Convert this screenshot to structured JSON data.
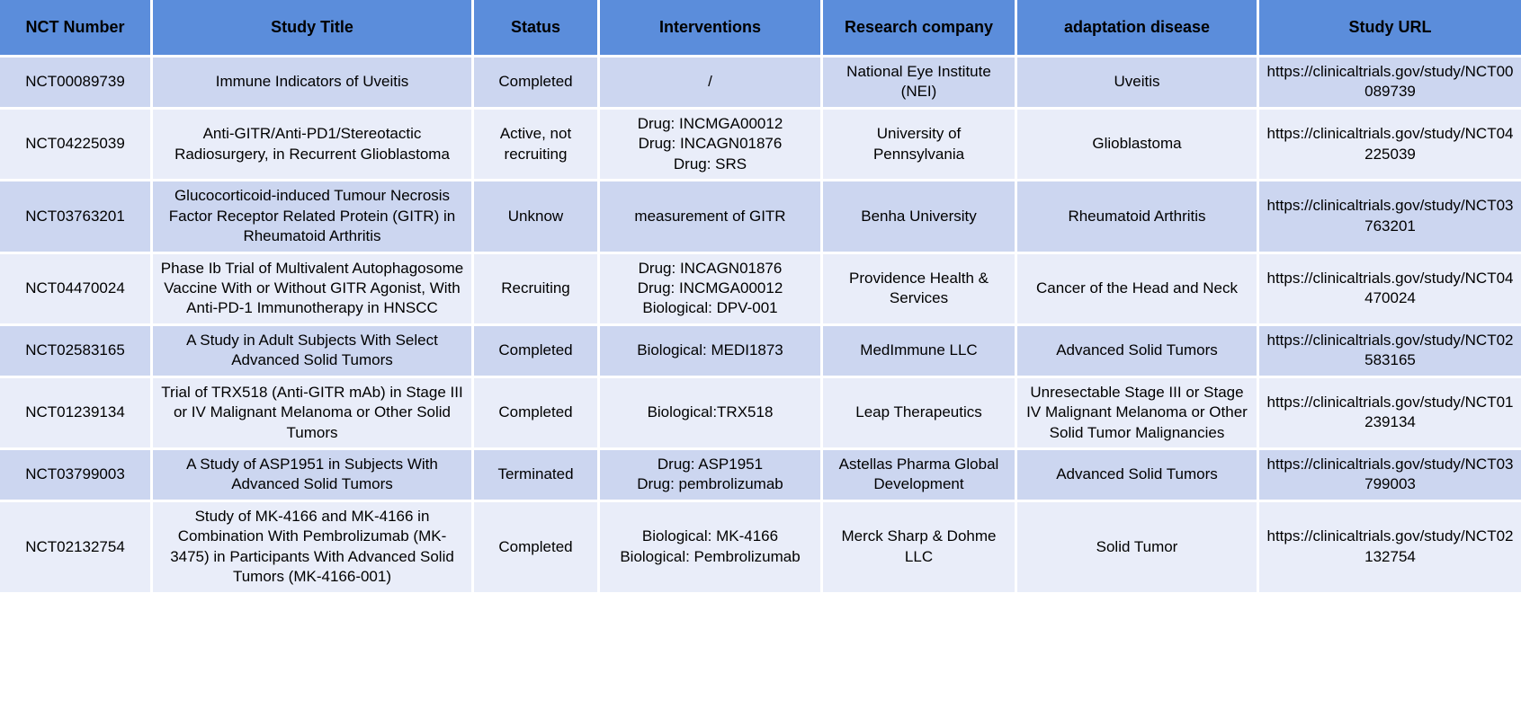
{
  "colors": {
    "header_bg": "#5b8ddb",
    "row_odd_bg": "#ccd6f0",
    "row_even_bg": "#e9edf9",
    "grid_color": "#ffffff",
    "text_color": "#000000"
  },
  "table": {
    "columns": [
      {
        "key": "nct_number",
        "label": "NCT Number"
      },
      {
        "key": "study_title",
        "label": "Study Title"
      },
      {
        "key": "status",
        "label": "Status"
      },
      {
        "key": "interventions",
        "label": "Interventions"
      },
      {
        "key": "research_company",
        "label": "Research company"
      },
      {
        "key": "adaptation_disease",
        "label": "adaptation disease"
      },
      {
        "key": "study_url",
        "label": "Study URL"
      }
    ],
    "rows": [
      {
        "nct_number": "NCT00089739",
        "study_title": "Immune Indicators of Uveitis",
        "status": "Completed",
        "interventions": "/",
        "research_company": "National Eye Institute (NEI)",
        "adaptation_disease": "Uveitis",
        "study_url": "https://clinicaltrials.gov/study/NCT00089739"
      },
      {
        "nct_number": "NCT04225039",
        "study_title": "Anti-GITR/Anti-PD1/Stereotactic Radiosurgery, in Recurrent Glioblastoma",
        "status": "Active, not recruiting",
        "interventions": "Drug: INCMGA00012\nDrug: INCAGN01876\nDrug: SRS",
        "research_company": "University of Pennsylvania",
        "adaptation_disease": "Glioblastoma",
        "study_url": "https://clinicaltrials.gov/study/NCT04225039"
      },
      {
        "nct_number": "NCT03763201",
        "study_title": "Glucocorticoid-induced Tumour Necrosis Factor Receptor Related Protein (GITR) in Rheumatoid Arthritis",
        "status": "Unknow",
        "interventions": "measurement of GITR",
        "research_company": "Benha University",
        "adaptation_disease": "Rheumatoid Arthritis",
        "study_url": "https://clinicaltrials.gov/study/NCT03763201"
      },
      {
        "nct_number": "NCT04470024",
        "study_title": "Phase Ib Trial of Multivalent Autophagosome Vaccine With or Without GITR Agonist, With Anti-PD-1 Immunotherapy in HNSCC",
        "status": "Recruiting",
        "interventions": "Drug: INCAGN01876\nDrug: INCMGA00012\nBiological: DPV-001",
        "research_company": "Providence Health & Services",
        "adaptation_disease": "Cancer of the Head and Neck",
        "study_url": "https://clinicaltrials.gov/study/NCT04470024"
      },
      {
        "nct_number": "NCT02583165",
        "study_title": "A Study in Adult Subjects With Select Advanced Solid Tumors",
        "status": "Completed",
        "interventions": "Biological: MEDI1873",
        "research_company": "MedImmune LLC",
        "adaptation_disease": "Advanced Solid Tumors",
        "study_url": "https://clinicaltrials.gov/study/NCT02583165"
      },
      {
        "nct_number": "NCT01239134",
        "study_title": "Trial of TRX518 (Anti-GITR mAb) in Stage III or IV Malignant Melanoma or Other Solid Tumors",
        "status": "Completed",
        "interventions": "Biological:TRX518",
        "research_company": "Leap Therapeutics",
        "adaptation_disease": "Unresectable Stage III or Stage IV Malignant Melanoma or Other Solid Tumor Malignancies",
        "study_url": "https://clinicaltrials.gov/study/NCT01239134"
      },
      {
        "nct_number": "NCT03799003",
        "study_title": "A Study of ASP1951 in Subjects With Advanced Solid Tumors",
        "status": "Terminated",
        "interventions": "Drug: ASP1951\nDrug: pembrolizumab",
        "research_company": "Astellas Pharma Global Development",
        "adaptation_disease": "Advanced Solid Tumors",
        "study_url": "https://clinicaltrials.gov/study/NCT03799003"
      },
      {
        "nct_number": "NCT02132754",
        "study_title": "Study of MK-4166 and MK-4166 in Combination With Pembrolizumab (MK-3475) in Participants With Advanced Solid Tumors (MK-4166-001)",
        "status": "Completed",
        "interventions": "Biological: MK-4166\nBiological: Pembrolizumab",
        "research_company": "Merck Sharp & Dohme LLC",
        "adaptation_disease": "Solid Tumor",
        "study_url": "https://clinicaltrials.gov/study/NCT02132754"
      }
    ]
  }
}
